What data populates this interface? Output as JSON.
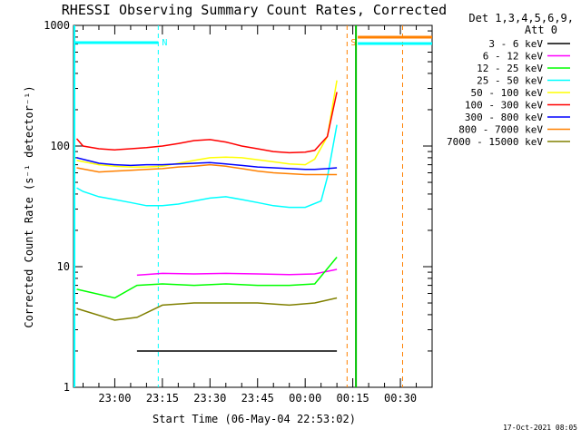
{
  "chart_data": {
    "type": "line",
    "title": "RHESSI Observing Summary Count Rates, Corrected",
    "xlabel": "Start Time (06-May-04 22:53:02)",
    "ylabel": "Corrected Count Rate (s⁻¹ detector⁻¹)",
    "yscale": "log",
    "ylim": [
      1,
      1000
    ],
    "y_ticks": [
      {
        "value": 1,
        "label": "1"
      },
      {
        "value": 10,
        "label": "10"
      },
      {
        "value": 100,
        "label": "100"
      },
      {
        "value": 1000,
        "label": "1000"
      }
    ],
    "xlim_minutes": [
      -13,
      100
    ],
    "x_ticks": [
      {
        "minute": 0,
        "label": "23:00"
      },
      {
        "minute": 15,
        "label": "23:15"
      },
      {
        "minute": 30,
        "label": "23:30"
      },
      {
        "minute": 45,
        "label": "23:45"
      },
      {
        "minute": 60,
        "label": "00:00"
      },
      {
        "minute": 75,
        "label": "00:15"
      },
      {
        "minute": 90,
        "label": "00:30"
      }
    ],
    "legend_header": [
      "Det 1,3,4,5,6,9,",
      "Att 0"
    ],
    "legend_position": "right",
    "markers": [
      {
        "label": "N",
        "minute": 13.7,
        "color": "#00ffff"
      },
      {
        "label": "S",
        "minute": 73.2,
        "color": "#ff8000"
      }
    ],
    "series": [
      {
        "name": "3 - 6 keV",
        "color": "#000000",
        "x": [
          7,
          15,
          25,
          35,
          45,
          55,
          63,
          70
        ],
        "y": [
          2.0,
          2.0,
          2.0,
          2.0,
          2.0,
          2.0,
          2.0,
          2.0
        ]
      },
      {
        "name": "6 - 12 keV",
        "color": "#ff00ff",
        "x": [
          7,
          15,
          25,
          35,
          45,
          55,
          63,
          70
        ],
        "y": [
          8.5,
          8.8,
          8.7,
          8.8,
          8.7,
          8.6,
          8.7,
          9.5
        ]
      },
      {
        "name": "12 - 25 keV",
        "color": "#00ff00",
        "x": [
          -12,
          0,
          7,
          15,
          25,
          35,
          45,
          55,
          63,
          70
        ],
        "y": [
          6.5,
          5.5,
          7.0,
          7.2,
          7.0,
          7.2,
          7.0,
          7.0,
          7.2,
          12
        ]
      },
      {
        "name": "25 - 50 keV",
        "color": "#00ffff",
        "x": [
          -12,
          -10,
          -5,
          0,
          5,
          10,
          15,
          20,
          25,
          30,
          35,
          40,
          45,
          50,
          55,
          60,
          65,
          67,
          70
        ],
        "y": [
          45,
          42,
          38,
          36,
          34,
          32,
          32,
          33,
          35,
          37,
          38,
          36,
          34,
          32,
          31,
          31,
          35,
          55,
          150
        ]
      },
      {
        "name": "50 - 100 keV",
        "color": "#ffff00",
        "x": [
          -12,
          -5,
          0,
          5,
          10,
          15,
          20,
          25,
          30,
          35,
          40,
          45,
          50,
          55,
          60,
          63,
          67,
          70
        ],
        "y": [
          76,
          70,
          68,
          67,
          67,
          68,
          72,
          76,
          80,
          81,
          80,
          77,
          74,
          71,
          70,
          78,
          120,
          350
        ]
      },
      {
        "name": "100 - 300 keV",
        "color": "#ff0000",
        "x": [
          -12,
          -10,
          -5,
          0,
          5,
          10,
          15,
          20,
          25,
          30,
          35,
          40,
          45,
          50,
          55,
          60,
          63,
          67,
          70
        ],
        "y": [
          115,
          100,
          95,
          93,
          95,
          97,
          100,
          105,
          111,
          113,
          108,
          100,
          95,
          90,
          88,
          89,
          92,
          120,
          280
        ]
      },
      {
        "name": "300 - 800 keV",
        "color": "#0000ff",
        "x": [
          -12,
          -5,
          0,
          5,
          10,
          15,
          20,
          25,
          30,
          35,
          40,
          45,
          50,
          55,
          60,
          63,
          67,
          70
        ],
        "y": [
          80,
          72,
          70,
          69,
          70,
          70,
          71,
          72,
          73,
          71,
          69,
          67,
          66,
          65,
          64,
          64,
          65,
          66
        ]
      },
      {
        "name": "800 - 7000 keV",
        "color": "#ff8000",
        "x": [
          -12,
          -5,
          0,
          5,
          10,
          15,
          20,
          25,
          30,
          35,
          40,
          45,
          50,
          55,
          60,
          63,
          67,
          70
        ],
        "y": [
          66,
          61,
          62,
          63,
          64,
          65,
          67,
          68,
          70,
          68,
          65,
          62,
          60,
          59,
          58,
          58,
          58,
          58
        ]
      },
      {
        "name": "7000 - 15000 keV",
        "color": "#808000",
        "x": [
          -12,
          0,
          7,
          15,
          25,
          35,
          45,
          55,
          63,
          70
        ],
        "y": [
          4.5,
          3.6,
          3.8,
          4.8,
          5.0,
          5.0,
          5.0,
          4.8,
          5.0,
          5.5
        ]
      }
    ]
  },
  "footer": {
    "generated": "17-Oct-2021 08:05"
  }
}
